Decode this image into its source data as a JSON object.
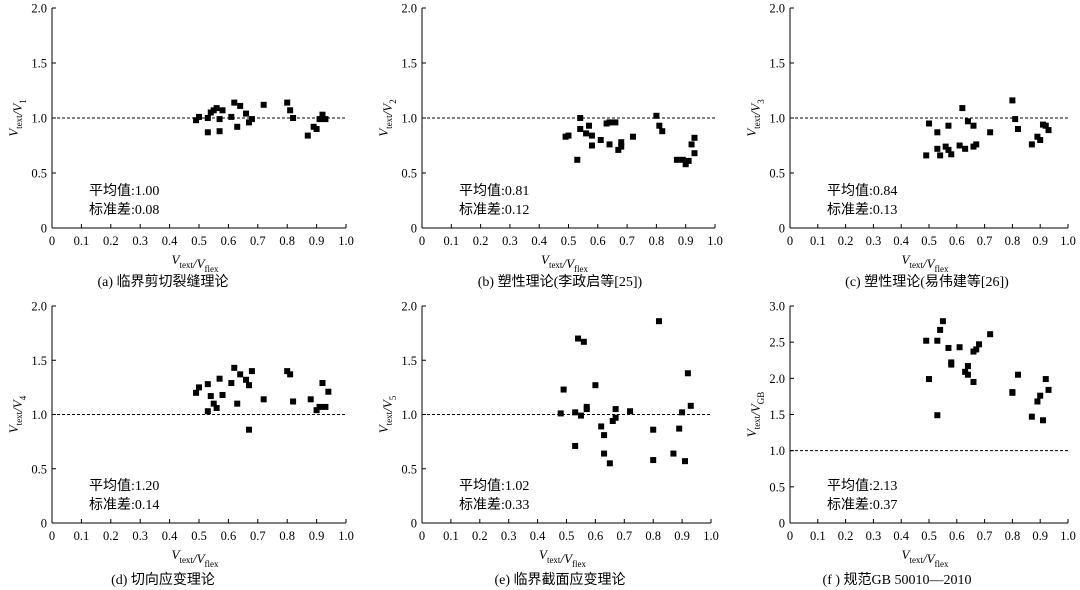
{
  "chart_data": [
    {
      "type": "scatter",
      "caption": "(a) 临界剪切裂缝理论",
      "xlabel": "V_text/V_flex",
      "ylabel": "V_text/V_1",
      "xlabel_main": "V",
      "xlabel_sub1": "text",
      "xlabel_main2": "V",
      "xlabel_sub2": "flex",
      "ylabel_main": "V",
      "ylabel_sub1": "text",
      "ylabel_main2": "V",
      "ylabel_sub2": "1",
      "xlim": [
        0,
        1.0
      ],
      "ylim": [
        0,
        2.0
      ],
      "xticks": [
        "0",
        "0.1",
        "0.2",
        "0.3",
        "0.4",
        "0.5",
        "0.6",
        "0.7",
        "0.8",
        "0.9",
        "1.0"
      ],
      "yticks": [
        "0",
        "0.5",
        "1.0",
        "1.5",
        "2.0"
      ],
      "reference_line": 1.0,
      "mean_text": "平均值:1.00",
      "std_text": "标准差:0.08",
      "points": [
        [
          0.49,
          0.98
        ],
        [
          0.5,
          1.01
        ],
        [
          0.53,
          1.0
        ],
        [
          0.53,
          0.87
        ],
        [
          0.54,
          1.05
        ],
        [
          0.55,
          1.07
        ],
        [
          0.56,
          1.09
        ],
        [
          0.57,
          0.99
        ],
        [
          0.57,
          0.88
        ],
        [
          0.58,
          1.07
        ],
        [
          0.61,
          1.01
        ],
        [
          0.62,
          1.14
        ],
        [
          0.63,
          0.92
        ],
        [
          0.64,
          1.11
        ],
        [
          0.66,
          1.04
        ],
        [
          0.67,
          0.96
        ],
        [
          0.68,
          0.99
        ],
        [
          0.72,
          1.12
        ],
        [
          0.8,
          1.14
        ],
        [
          0.81,
          1.07
        ],
        [
          0.82,
          1.0
        ],
        [
          0.87,
          0.84
        ],
        [
          0.89,
          0.92
        ],
        [
          0.9,
          0.9
        ],
        [
          0.91,
          0.99
        ],
        [
          0.92,
          1.03
        ],
        [
          0.93,
          0.99
        ]
      ]
    },
    {
      "type": "scatter",
      "caption": "(b) 塑性理论(李政启等[25])",
      "xlabel": "V_text/V_flex",
      "ylabel": "V_text/V_2",
      "xlabel_main": "V",
      "xlabel_sub1": "text",
      "xlabel_main2": "V",
      "xlabel_sub2": "flex",
      "ylabel_main": "V",
      "ylabel_sub1": "text",
      "ylabel_main2": "V",
      "ylabel_sub2": "2",
      "xlim": [
        0,
        1.0
      ],
      "ylim": [
        0,
        2.0
      ],
      "xticks": [
        "0",
        "0.1",
        "0.2",
        "0.3",
        "0.4",
        "0.5",
        "0.6",
        "0.7",
        "0.8",
        "0.9",
        "1.0"
      ],
      "yticks": [
        "0",
        "0.5",
        "1.0",
        "1.5",
        "2.0"
      ],
      "reference_line": 1.0,
      "mean_text": "平均值:0.81",
      "std_text": "标准差:0.12",
      "points": [
        [
          0.49,
          0.83
        ],
        [
          0.5,
          0.84
        ],
        [
          0.53,
          0.62
        ],
        [
          0.54,
          1.0
        ],
        [
          0.54,
          0.9
        ],
        [
          0.56,
          0.86
        ],
        [
          0.57,
          0.93
        ],
        [
          0.58,
          0.84
        ],
        [
          0.58,
          0.75
        ],
        [
          0.61,
          0.8
        ],
        [
          0.63,
          0.95
        ],
        [
          0.64,
          0.76
        ],
        [
          0.64,
          0.96
        ],
        [
          0.66,
          0.96
        ],
        [
          0.67,
          0.71
        ],
        [
          0.68,
          0.74
        ],
        [
          0.68,
          0.78
        ],
        [
          0.72,
          0.83
        ],
        [
          0.8,
          1.02
        ],
        [
          0.81,
          0.93
        ],
        [
          0.82,
          0.88
        ],
        [
          0.87,
          0.62
        ],
        [
          0.89,
          0.62
        ],
        [
          0.9,
          0.58
        ],
        [
          0.91,
          0.61
        ],
        [
          0.92,
          0.76
        ],
        [
          0.93,
          0.82
        ],
        [
          0.93,
          0.68
        ]
      ]
    },
    {
      "type": "scatter",
      "caption": "(c) 塑性理论(易伟建等[26])",
      "xlabel": "V_text/V_flex",
      "ylabel": "V_text/V_3",
      "xlabel_main": "V",
      "xlabel_sub1": "text",
      "xlabel_main2": "V",
      "xlabel_sub2": "flex",
      "ylabel_main": "V",
      "ylabel_sub1": "text",
      "ylabel_main2": "V",
      "ylabel_sub2": "3",
      "xlim": [
        0,
        1.0
      ],
      "ylim": [
        0,
        2.0
      ],
      "xticks": [
        "0",
        "0.1",
        "0.2",
        "0.3",
        "0.4",
        "0.5",
        "0.6",
        "0.7",
        "0.8",
        "0.9",
        "1.0"
      ],
      "yticks": [
        "0",
        "0.5",
        "1.0",
        "1.5",
        "2.0"
      ],
      "reference_line": 1.0,
      "mean_text": "平均值:0.84",
      "std_text": "标准差:0.13",
      "points": [
        [
          0.49,
          0.66
        ],
        [
          0.5,
          0.95
        ],
        [
          0.53,
          0.87
        ],
        [
          0.53,
          0.72
        ],
        [
          0.54,
          0.66
        ],
        [
          0.56,
          0.74
        ],
        [
          0.57,
          0.71
        ],
        [
          0.57,
          0.93
        ],
        [
          0.58,
          0.67
        ],
        [
          0.61,
          0.75
        ],
        [
          0.62,
          1.09
        ],
        [
          0.63,
          0.72
        ],
        [
          0.64,
          0.97
        ],
        [
          0.66,
          0.93
        ],
        [
          0.66,
          0.74
        ],
        [
          0.67,
          0.76
        ],
        [
          0.72,
          0.87
        ],
        [
          0.8,
          1.16
        ],
        [
          0.81,
          0.99
        ],
        [
          0.82,
          0.9
        ],
        [
          0.87,
          0.76
        ],
        [
          0.89,
          0.83
        ],
        [
          0.9,
          0.8
        ],
        [
          0.91,
          0.94
        ],
        [
          0.92,
          0.93
        ],
        [
          0.93,
          0.89
        ]
      ]
    },
    {
      "type": "scatter",
      "caption": "(d) 切向应变理论",
      "xlabel": "V_text/V_flex",
      "ylabel": "V_text/V_4",
      "xlabel_main": "V",
      "xlabel_sub1": "text",
      "xlabel_main2": "V",
      "xlabel_sub2": "flex",
      "ylabel_main": "V",
      "ylabel_sub1": "text",
      "ylabel_main2": "V",
      "ylabel_sub2": "4",
      "xlim": [
        0,
        1.0
      ],
      "ylim": [
        0,
        2.0
      ],
      "xticks": [
        "0",
        "0.1",
        "0.2",
        "0.3",
        "0.4",
        "0.5",
        "0.6",
        "0.7",
        "0.8",
        "0.9",
        "1.0"
      ],
      "yticks": [
        "0",
        "0.5",
        "1.0",
        "1.5",
        "2.0"
      ],
      "reference_line": 1.0,
      "mean_text": "平均值:1.20",
      "std_text": "标准差:0.14",
      "points": [
        [
          0.49,
          1.2
        ],
        [
          0.5,
          1.25
        ],
        [
          0.53,
          1.03
        ],
        [
          0.53,
          1.28
        ],
        [
          0.54,
          1.17
        ],
        [
          0.55,
          1.1
        ],
        [
          0.56,
          1.06
        ],
        [
          0.57,
          1.33
        ],
        [
          0.58,
          1.18
        ],
        [
          0.61,
          1.29
        ],
        [
          0.62,
          1.43
        ],
        [
          0.63,
          1.1
        ],
        [
          0.64,
          1.37
        ],
        [
          0.66,
          1.32
        ],
        [
          0.67,
          1.27
        ],
        [
          0.67,
          0.86
        ],
        [
          0.68,
          1.4
        ],
        [
          0.72,
          1.14
        ],
        [
          0.8,
          1.4
        ],
        [
          0.81,
          1.37
        ],
        [
          0.82,
          1.12
        ],
        [
          0.88,
          1.14
        ],
        [
          0.9,
          1.04
        ],
        [
          0.91,
          1.07
        ],
        [
          0.92,
          1.29
        ],
        [
          0.93,
          1.07
        ],
        [
          0.94,
          1.21
        ]
      ]
    },
    {
      "type": "scatter",
      "caption": "(e) 临界截面应变理论",
      "xlabel": "V_text/V_flex",
      "ylabel": "V_text/V_5",
      "xlabel_main": "V",
      "xlabel_sub1": "text",
      "xlabel_main2": "V",
      "xlabel_sub2": "flex",
      "ylabel_main": "V",
      "ylabel_sub1": "text",
      "ylabel_main2": "V",
      "ylabel_sub2": "5",
      "xlim": [
        0,
        1.0
      ],
      "ylim": [
        0,
        2.0
      ],
      "xticks": [
        "0",
        "0.1",
        "0.2",
        "0.3",
        "0.4",
        "0.5",
        "0.6",
        "0.7",
        "0.8",
        "0.9",
        "1.0"
      ],
      "yticks": [
        "0",
        "0.5",
        "1.0",
        "1.5",
        "2.0"
      ],
      "reference_line": 1.0,
      "mean_text": "平均值:1.02",
      "std_text": "标准差:0.33",
      "points": [
        [
          0.48,
          1.01
        ],
        [
          0.49,
          1.23
        ],
        [
          0.53,
          1.02
        ],
        [
          0.53,
          0.71
        ],
        [
          0.54,
          1.7
        ],
        [
          0.55,
          0.99
        ],
        [
          0.56,
          1.67
        ],
        [
          0.57,
          1.07
        ],
        [
          0.57,
          1.05
        ],
        [
          0.6,
          1.27
        ],
        [
          0.62,
          0.89
        ],
        [
          0.63,
          0.81
        ],
        [
          0.63,
          0.64
        ],
        [
          0.65,
          0.55
        ],
        [
          0.66,
          0.94
        ],
        [
          0.67,
          1.05
        ],
        [
          0.67,
          0.97
        ],
        [
          0.72,
          1.03
        ],
        [
          0.8,
          0.86
        ],
        [
          0.8,
          0.58
        ],
        [
          0.82,
          1.86
        ],
        [
          0.87,
          0.64
        ],
        [
          0.89,
          0.87
        ],
        [
          0.9,
          1.02
        ],
        [
          0.91,
          0.57
        ],
        [
          0.92,
          1.38
        ],
        [
          0.93,
          1.08
        ]
      ]
    },
    {
      "type": "scatter",
      "caption": "(f ) 规范GB 50010—2010",
      "xlabel": "V_text/V_flex",
      "ylabel": "V_text/V_GB",
      "xlabel_main": "V",
      "xlabel_sub1": "text",
      "xlabel_main2": "V",
      "xlabel_sub2": "flex",
      "ylabel_main": "V",
      "ylabel_sub1": "text",
      "ylabel_main2": "V",
      "ylabel_sub2": "GB",
      "xlim": [
        0,
        1.0
      ],
      "ylim": [
        0,
        3.0
      ],
      "xticks": [
        "0",
        "0.1",
        "0.2",
        "0.3",
        "0.4",
        "0.5",
        "0.6",
        "0.7",
        "0.8",
        "0.9",
        "1.0"
      ],
      "yticks": [
        "0",
        "0.5",
        "1.0",
        "1.5",
        "2.0",
        "2.5",
        "3.0"
      ],
      "reference_line": 1.0,
      "mean_text": "平均值:2.13",
      "std_text": "标准差:0.37",
      "points": [
        [
          0.49,
          2.52
        ],
        [
          0.5,
          1.99
        ],
        [
          0.53,
          2.52
        ],
        [
          0.53,
          1.49
        ],
        [
          0.54,
          2.67
        ],
        [
          0.55,
          2.79
        ],
        [
          0.57,
          2.42
        ],
        [
          0.58,
          2.19
        ],
        [
          0.58,
          2.22
        ],
        [
          0.61,
          2.43
        ],
        [
          0.63,
          2.09
        ],
        [
          0.64,
          2.05
        ],
        [
          0.64,
          2.17
        ],
        [
          0.66,
          1.95
        ],
        [
          0.66,
          2.37
        ],
        [
          0.67,
          2.4
        ],
        [
          0.68,
          2.47
        ],
        [
          0.72,
          2.61
        ],
        [
          0.8,
          1.8
        ],
        [
          0.8,
          1.81
        ],
        [
          0.82,
          2.05
        ],
        [
          0.87,
          1.47
        ],
        [
          0.89,
          1.68
        ],
        [
          0.9,
          1.76
        ],
        [
          0.91,
          1.42
        ],
        [
          0.92,
          1.99
        ],
        [
          0.93,
          1.84
        ]
      ]
    }
  ]
}
